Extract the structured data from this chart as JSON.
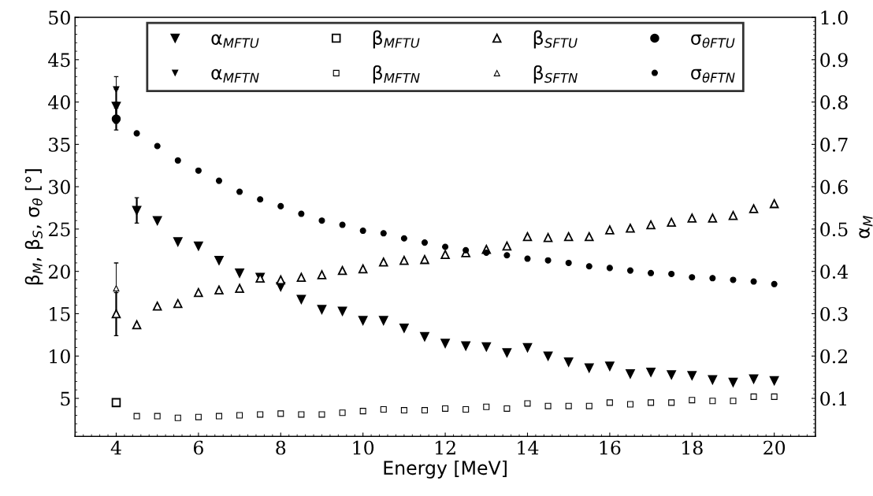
{
  "chart_data": {
    "type": "scatter",
    "xlabel": "Energy [MeV]",
    "ylabel": "β$_{M}$, β$_{S}$, σ$_{θ}$ [°]",
    "y2label": "α$_{M}$",
    "x": [
      4,
      4.5,
      5,
      5.5,
      6,
      6.5,
      7,
      7.5,
      8,
      8.5,
      9,
      9.5,
      10,
      10.5,
      11,
      11.5,
      12,
      12.5,
      13,
      13.5,
      14,
      14.5,
      15,
      15.5,
      16,
      16.5,
      17,
      17.5,
      18,
      18.5,
      19,
      19.5,
      20
    ],
    "xlim": [
      3,
      21
    ],
    "xticks": [
      4,
      6,
      8,
      10,
      12,
      14,
      16,
      18,
      20
    ],
    "ylim": [
      0.5,
      50
    ],
    "yticks": [
      5,
      10,
      15,
      20,
      25,
      30,
      35,
      40,
      45,
      50
    ],
    "y2lim": [
      0.01,
      1.0
    ],
    "y2ticks": [
      0.1,
      0.2,
      0.3,
      0.4,
      0.5,
      0.6,
      0.7,
      0.8,
      0.9,
      {
        "value": 1.0,
        "label": "1.0"
      }
    ],
    "grid": false,
    "legend": "top",
    "series": [
      {
        "name": "α$_{MFTU}$",
        "color": "#000000",
        "marker": "triangle_down",
        "axis": "y2",
        "values": [
          0.79,
          0.544,
          0.52,
          0.47,
          0.46,
          0.426,
          0.396,
          0.386,
          0.364,
          0.334,
          0.31,
          0.306,
          0.284,
          0.284,
          0.266,
          0.246,
          0.23,
          0.224,
          0.222,
          0.208,
          0.22,
          0.2,
          0.186,
          0.172,
          0.176,
          0.158,
          0.162,
          0.156,
          0.154,
          0.144,
          0.138,
          0.146,
          0.142
        ],
        "errors": [
          0.04,
          0.03,
          null,
          null,
          null,
          null,
          null,
          null,
          null,
          null,
          null,
          null,
          null,
          null,
          null,
          null,
          null,
          null,
          null,
          null,
          null,
          null,
          null,
          null,
          null,
          null,
          null,
          null,
          null,
          null,
          null,
          null,
          null
        ]
      },
      {
        "name": "α$_{MFTN}$",
        "color": "#000000",
        "marker": "triangle_down",
        "axis": "y2",
        "x": [
          4
        ],
        "values": [
          0.83
        ],
        "errors": [
          0.03
        ]
      },
      {
        "name": "β$_{MFTU}$",
        "color": "#000000",
        "marker": "square",
        "x": [
          4
        ],
        "values": [
          4.5
        ]
      },
      {
        "name": "β$_{MFTN}$",
        "color": "#000000",
        "marker": "square",
        "x": [
          4.5,
          5,
          5.5,
          6,
          6.5,
          7,
          7.5,
          8,
          8.5,
          9,
          9.5,
          10,
          10.5,
          11,
          11.5,
          12,
          12.5,
          13,
          13.5,
          14,
          14.5,
          15,
          15.5,
          16,
          16.5,
          17,
          17.5,
          18,
          18.5,
          19,
          19.5,
          20
        ],
        "values": [
          2.9,
          2.9,
          2.7,
          2.8,
          2.9,
          3.0,
          3.1,
          3.2,
          3.1,
          3.1,
          3.3,
          3.5,
          3.7,
          3.6,
          3.6,
          3.8,
          3.7,
          4.0,
          3.8,
          4.4,
          4.1,
          4.1,
          4.1,
          4.5,
          4.3,
          4.5,
          4.5,
          4.8,
          4.7,
          4.7,
          5.2,
          5.2
        ]
      },
      {
        "name": "β$_{SFTU}$",
        "color": "#000000",
        "marker": "triangle",
        "values": [
          15.0,
          13.7,
          15.9,
          16.2,
          17.5,
          17.8,
          18.0,
          19.2,
          19.0,
          19.3,
          19.6,
          20.1,
          20.3,
          21.1,
          21.3,
          21.4,
          22.0,
          22.2,
          22.6,
          23.0,
          24.1,
          24.0,
          24.1,
          24.1,
          24.9,
          25.1,
          25.5,
          25.8,
          26.3,
          26.3,
          26.6,
          27.4,
          28.0
        ],
        "errors": [
          [
            12.4,
            17.5
          ],
          null,
          null,
          null,
          null,
          null,
          null,
          null,
          null,
          null,
          null,
          null,
          null,
          null,
          null,
          null,
          null,
          null,
          null,
          null,
          null,
          null,
          null,
          null,
          null,
          null,
          null,
          null,
          null,
          null,
          null,
          null,
          null
        ]
      },
      {
        "name": "β$_{SFTN}$",
        "color": "#000000",
        "marker": "triangle",
        "x": [
          4
        ],
        "values": [
          18.0
        ],
        "errors": [
          3.0
        ]
      },
      {
        "name": "σ$_{θFTU}$",
        "color": "#000000",
        "marker": "circle",
        "x": [
          4
        ],
        "values": [
          38.0
        ],
        "errors": [
          1.3
        ]
      },
      {
        "name": "σ$_{θFTN}$",
        "color": "#000000",
        "marker": "circle",
        "x": [
          4.5,
          5,
          5.5,
          6,
          6.5,
          7,
          7.5,
          8,
          8.5,
          9,
          9.5,
          10,
          10.5,
          11,
          11.5,
          12,
          12.5,
          13,
          13.5,
          14,
          14.5,
          15,
          15.5,
          16,
          16.5,
          17,
          17.5,
          18,
          18.5,
          19,
          19.5,
          20
        ],
        "values": [
          36.3,
          34.8,
          33.1,
          31.9,
          30.7,
          29.4,
          28.5,
          27.7,
          26.8,
          26.0,
          25.5,
          24.8,
          24.5,
          23.9,
          23.4,
          22.9,
          22.5,
          22.2,
          21.9,
          21.5,
          21.3,
          21.0,
          20.6,
          20.4,
          20.1,
          19.8,
          19.7,
          19.3,
          19.2,
          19.0,
          18.8,
          18.5
        ]
      }
    ]
  }
}
